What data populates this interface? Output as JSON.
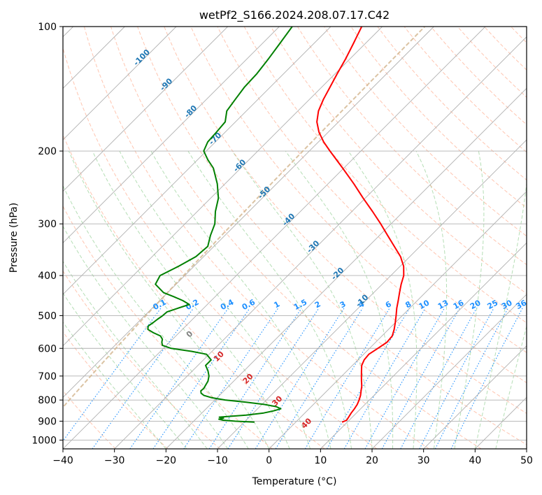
{
  "chart_data": {
    "type": "skew-t",
    "title": "wetPf2_S166.2024.208.07.17.C42",
    "xlabel": "Temperature (°C)",
    "ylabel": "Pressure (hPa)",
    "xlim": [
      -40,
      50
    ],
    "ylim": [
      1050,
      100
    ],
    "y_scale": "log",
    "grid": true,
    "x_ticks": [
      -40,
      -30,
      -20,
      -10,
      0,
      10,
      20,
      30,
      40,
      50
    ],
    "y_ticks": [
      100,
      200,
      300,
      400,
      500,
      600,
      700,
      800,
      900,
      1000
    ],
    "colors": {
      "temperature": "#ff0000",
      "dewpoint": "#008000",
      "isotherm_labels": "#1f77b4",
      "mixing_ratio": "#1e90ff",
      "moist_adiabat_labels": "#d62728",
      "dry_adiabats": "#ff7f50",
      "moist_adiabats": "#2ca02c",
      "lcl_curve": "#d2b48c",
      "zero_label": "#808080"
    },
    "series": [
      {
        "name": "Temperature",
        "pressure": [
          905,
          895,
          880,
          860,
          840,
          820,
          800,
          780,
          760,
          740,
          720,
          700,
          680,
          660,
          640,
          620,
          600,
          580,
          560,
          540,
          520,
          500,
          480,
          460,
          440,
          420,
          400,
          380,
          360,
          340,
          320,
          300,
          280,
          260,
          240,
          220,
          200,
          190,
          180,
          170,
          160,
          150,
          140,
          130,
          120,
          110,
          100
        ],
        "values": [
          9.0,
          9.5,
          9.3,
          9.0,
          8.8,
          8.5,
          8.0,
          7.4,
          6.6,
          5.8,
          4.8,
          3.8,
          2.8,
          1.8,
          1.2,
          1.0,
          1.6,
          2.2,
          2.0,
          1.1,
          0.0,
          -1.2,
          -2.5,
          -3.7,
          -5.0,
          -6.3,
          -7.5,
          -9.3,
          -11.8,
          -15.0,
          -18.4,
          -22.0,
          -26.0,
          -30.4,
          -35.0,
          -40.2,
          -46.0,
          -49.0,
          -51.8,
          -54.2,
          -56.0,
          -57.3,
          -58.4,
          -59.6,
          -60.8,
          -62.3,
          -64.0
        ]
      },
      {
        "name": "Dewpoint",
        "pressure": [
          905,
          900,
          895,
          890,
          885,
          880,
          870,
          860,
          850,
          840,
          830,
          820,
          810,
          800,
          790,
          780,
          770,
          760,
          750,
          740,
          720,
          700,
          680,
          660,
          640,
          620,
          610,
          600,
          590,
          580,
          570,
          560,
          550,
          540,
          530,
          520,
          510,
          500,
          490,
          480,
          470,
          460,
          450,
          440,
          420,
          400,
          380,
          360,
          340,
          320,
          300,
          280,
          260,
          240,
          220,
          210,
          200,
          190,
          180,
          170,
          160,
          150,
          140,
          130,
          120,
          110,
          100
        ],
        "values": [
          -8.0,
          -12.0,
          -14.5,
          -15.5,
          -14.8,
          -15.8,
          -11.0,
          -8.0,
          -6.5,
          -5.5,
          -6.8,
          -9.5,
          -13.5,
          -18.0,
          -21.0,
          -23.0,
          -24.0,
          -24.5,
          -24.4,
          -24.6,
          -25.0,
          -25.8,
          -27.0,
          -28.5,
          -28.5,
          -30.5,
          -34.0,
          -38.5,
          -40.8,
          -41.5,
          -42.0,
          -43.0,
          -45.0,
          -46.7,
          -47.3,
          -47.0,
          -46.8,
          -46.5,
          -46.4,
          -45.0,
          -43.5,
          -45.5,
          -48.0,
          -50.8,
          -54.0,
          -54.8,
          -53.0,
          -51.5,
          -51.2,
          -52.8,
          -54.2,
          -56.5,
          -58.5,
          -61.5,
          -65.3,
          -68.0,
          -70.5,
          -71.5,
          -71.7,
          -72.0,
          -73.8,
          -74.4,
          -75.0,
          -75.2,
          -75.8,
          -76.6,
          -77.5
        ]
      }
    ],
    "isotherm_labels": [
      -100,
      -90,
      -80,
      -70,
      -60,
      -50,
      -40,
      -30,
      -20,
      -10
    ],
    "mixing_ratio_labels": [
      "0.1",
      "0.2",
      "0.4",
      "0.6",
      "1",
      "1.5",
      "2",
      "3",
      "4",
      "6",
      "8",
      "10",
      "13",
      "16",
      "20",
      "25",
      "30",
      "36"
    ],
    "moist_adiabat_labels": [
      "0",
      "10",
      "20",
      "30",
      "40"
    ]
  }
}
